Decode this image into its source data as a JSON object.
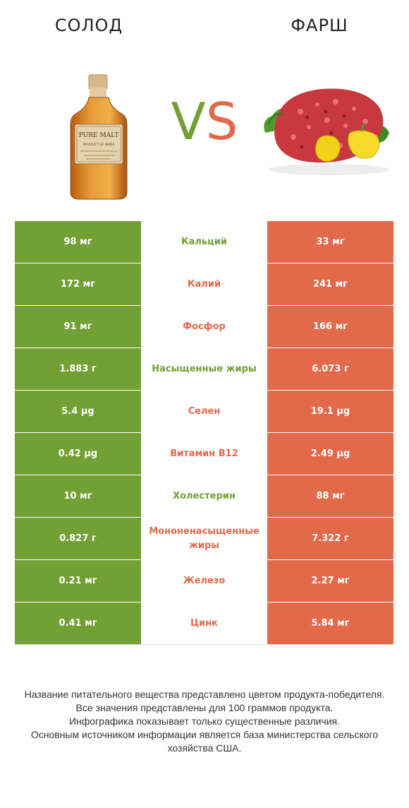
{
  "header": {
    "left_title": "СОЛОД",
    "right_title": "ФАРШ",
    "vs_v": "V",
    "vs_s": "S"
  },
  "colors": {
    "left_winner": "#73a034",
    "right_winner": "#e2694a"
  },
  "bottle_label": {
    "line1": "PURE MALT",
    "line2": "PRODUCT OF NIKKA"
  },
  "rows": [
    {
      "left": "98 мг",
      "name": "Кальций",
      "right": "33 мг",
      "winner": "left"
    },
    {
      "left": "172 мг",
      "name": "Калий",
      "right": "241 мг",
      "winner": "right"
    },
    {
      "left": "91 мг",
      "name": "Фосфор",
      "right": "166 мг",
      "winner": "right"
    },
    {
      "left": "1.883 г",
      "name": "Насыщенные жиры",
      "right": "6.073 г",
      "winner": "left"
    },
    {
      "left": "5.4 µg",
      "name": "Селен",
      "right": "19.1 µg",
      "winner": "right"
    },
    {
      "left": "0.42 µg",
      "name": "Витамин B12",
      "right": "2.49 µg",
      "winner": "right"
    },
    {
      "left": "10 мг",
      "name": "Холестерин",
      "right": "88 мг",
      "winner": "left"
    },
    {
      "left": "0.827 г",
      "name": "Мононенасыщенные жиры",
      "right": "7.322 г",
      "winner": "right"
    },
    {
      "left": "0.21 мг",
      "name": "Железо",
      "right": "2.27 мг",
      "winner": "right"
    },
    {
      "left": "0.41 мг",
      "name": "Цинк",
      "right": "5.84 мг",
      "winner": "right"
    }
  ],
  "footer": {
    "line1": "Название питательного вещества представлено цветом продукта-победителя.",
    "line2": "Все значения представлены для 100 граммов продукта.",
    "line3": "Инфографика показывает только существенные различия.",
    "line4": "Основным источником информации является база министерства сельского хозяйства США."
  }
}
